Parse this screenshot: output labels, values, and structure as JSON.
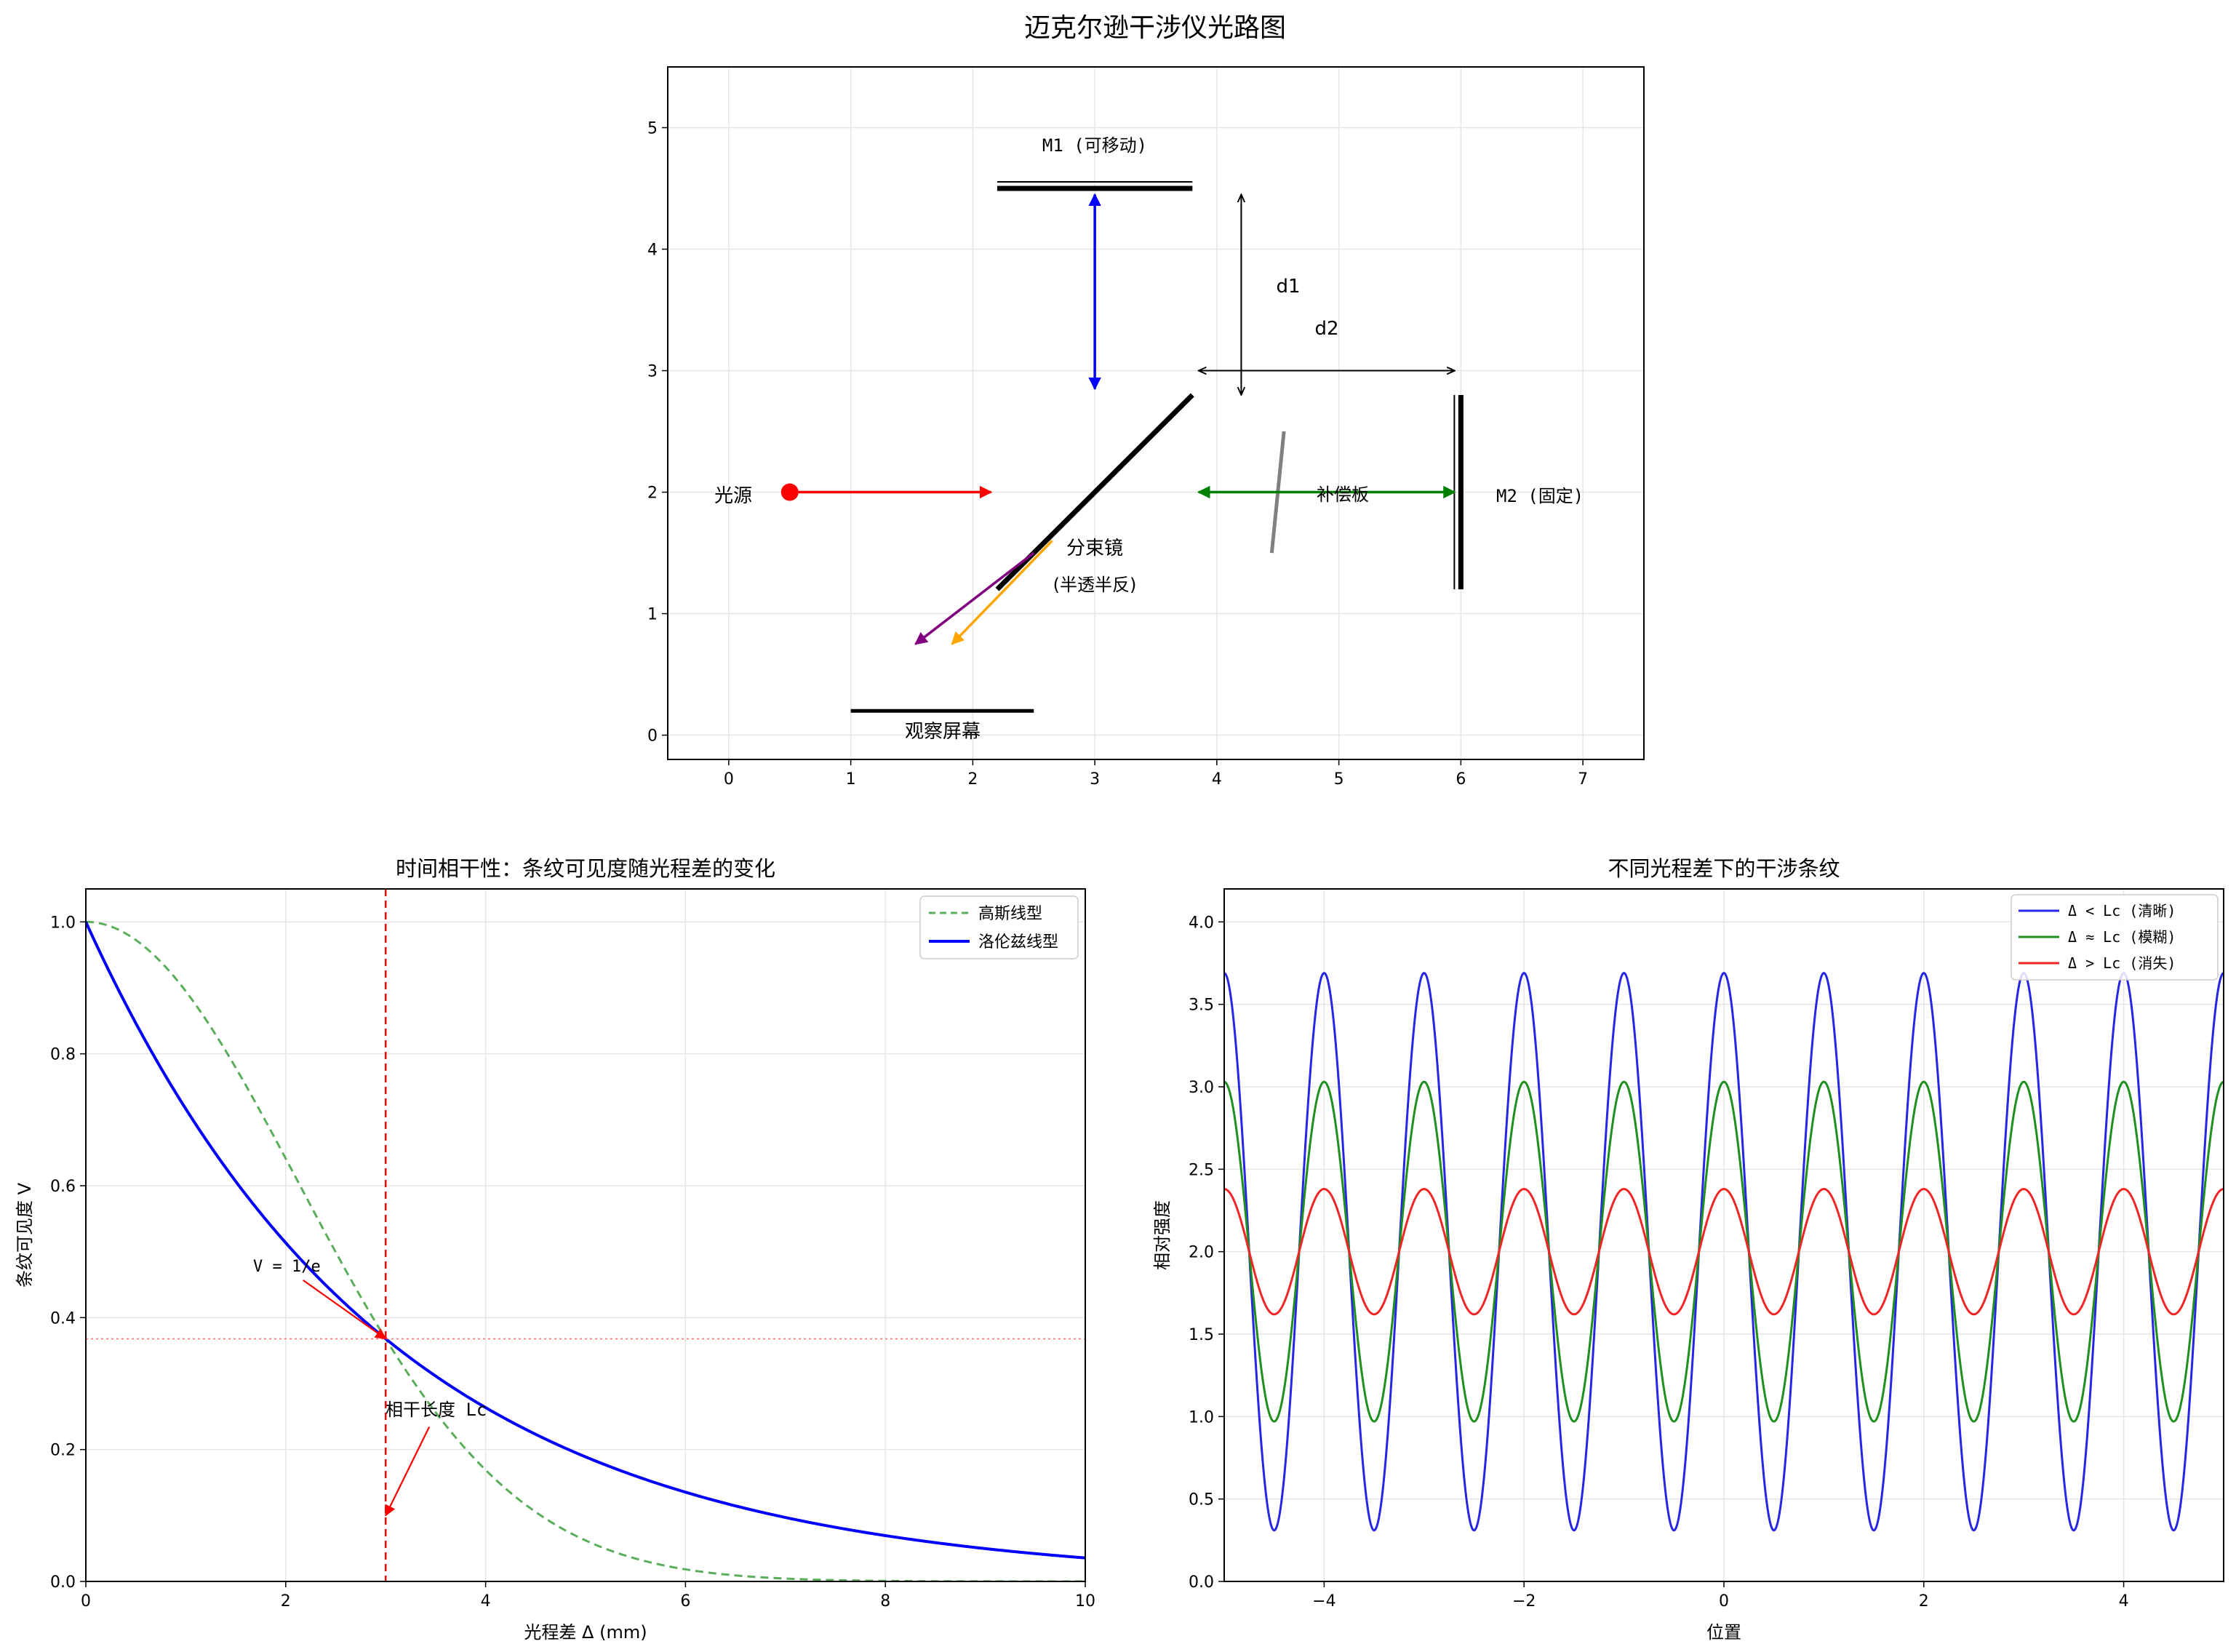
{
  "figure": {
    "suptitle": "迈克尔逊干涉仪光路图"
  },
  "chart_data": [
    {
      "id": "diagram",
      "type": "scatter",
      "title": "",
      "xlim": [
        -0.5,
        7.5
      ],
      "ylim": [
        -0.2,
        5.5
      ],
      "xticks": [
        0,
        1,
        2,
        3,
        4,
        5,
        6,
        7
      ],
      "yticks": [
        0,
        1,
        2,
        3,
        4,
        5
      ],
      "grid": true,
      "labels": {
        "source": "光源",
        "m1": "M1 (可移动)",
        "beamsplitter": "分束镜",
        "beamsplitter_sub": "(半透半反)",
        "compensator": "补偿板",
        "m2": "M2 (固定)",
        "screen": "观察屏幕",
        "d1": "d1",
        "d2": "d2"
      },
      "elements": {
        "source_point": [
          0.5,
          2.0
        ],
        "m1": {
          "x": [
            2.2,
            3.8
          ],
          "y": 4.5
        },
        "m2": {
          "x": 6.0,
          "y": [
            1.2,
            2.8
          ]
        },
        "beamsplitter": {
          "x": [
            2.2,
            3.8
          ],
          "y": [
            1.2,
            2.8
          ]
        },
        "compensator": {
          "x": [
            4.45,
            4.55
          ],
          "y": [
            1.5,
            2.5
          ]
        },
        "screen": {
          "x": [
            1.0,
            2.5
          ],
          "y": 0.2
        }
      },
      "arrows": [
        {
          "from": [
            0.5,
            2.0
          ],
          "to": [
            2.15,
            2.0
          ],
          "color": "#ff0000",
          "style": "single"
        },
        {
          "from": [
            3.0,
            2.85
          ],
          "to": [
            3.0,
            4.45
          ],
          "color": "#0000ff",
          "style": "double"
        },
        {
          "from": [
            3.85,
            2.0
          ],
          "to": [
            5.95,
            2.0
          ],
          "color": "#008000",
          "style": "double"
        },
        {
          "from": [
            2.65,
            1.6
          ],
          "to": [
            1.83,
            0.75
          ],
          "color": "#ffa500",
          "style": "single"
        },
        {
          "from": [
            2.5,
            1.5
          ],
          "to": [
            1.53,
            0.75
          ],
          "color": "#800080",
          "style": "single"
        },
        {
          "from": [
            4.2,
            2.8
          ],
          "to": [
            4.2,
            4.45
          ],
          "color": "#000000",
          "style": "double"
        },
        {
          "from": [
            3.85,
            3.0
          ],
          "to": [
            5.95,
            3.0
          ],
          "color": "#000000",
          "style": "double"
        }
      ]
    },
    {
      "id": "visibility",
      "type": "line",
      "title": "时间相干性：条纹可见度随光程差的变化",
      "xlabel": "光程差 Δ (mm)",
      "ylabel": "条纹可见度 V",
      "xlim": [
        0,
        10
      ],
      "ylim": [
        0,
        1.05
      ],
      "xticks": [
        0,
        2,
        4,
        6,
        8,
        10
      ],
      "yticks": [
        0.0,
        0.2,
        0.4,
        0.6,
        0.8,
        1.0
      ],
      "grid": true,
      "legend_position": "top-right",
      "coherence_length": 3,
      "series": [
        {
          "name": "高斯线型",
          "model": "gaussian",
          "formula": "V = exp(-(Δ/Lc)^2)",
          "color": "#5aad5a",
          "dashed": true
        },
        {
          "name": "洛伦兹线型",
          "model": "lorentzian",
          "formula": "V = exp(-Δ/Lc)",
          "color": "#0000ff",
          "dashed": false
        }
      ],
      "annotations": [
        {
          "text": "V = 1/e",
          "at": [
            3.0,
            0.368
          ],
          "label_at": [
            1.65,
            0.47
          ]
        },
        {
          "text": "相干长度 Lc",
          "at": [
            3.0,
            0.1
          ],
          "label_at": [
            3.0,
            0.25
          ]
        }
      ]
    },
    {
      "id": "fringes",
      "type": "line",
      "title": "不同光程差下的干涉条纹",
      "xlabel": "位置",
      "ylabel": "相对强度",
      "xlim": [
        -5,
        5
      ],
      "ylim": [
        0,
        4.2
      ],
      "xticks": [
        -4,
        -2,
        0,
        2,
        4
      ],
      "yticks": [
        0.0,
        0.5,
        1.0,
        1.5,
        2.0,
        2.5,
        3.0,
        3.5,
        4.0
      ],
      "grid": true,
      "legend_position": "top-right",
      "fringe_period": 1.0,
      "series": [
        {
          "name": "Δ < Lc (清晰)",
          "mean": 2.0,
          "amplitude": 1.69,
          "color": "#2626e6"
        },
        {
          "name": "Δ ≈ Lc (模糊)",
          "mean": 2.0,
          "amplitude": 1.03,
          "color": "#1f8f1f"
        },
        {
          "name": "Δ > Lc (消失)",
          "mean": 2.0,
          "amplitude": 0.38,
          "color": "#f02626"
        }
      ]
    }
  ]
}
